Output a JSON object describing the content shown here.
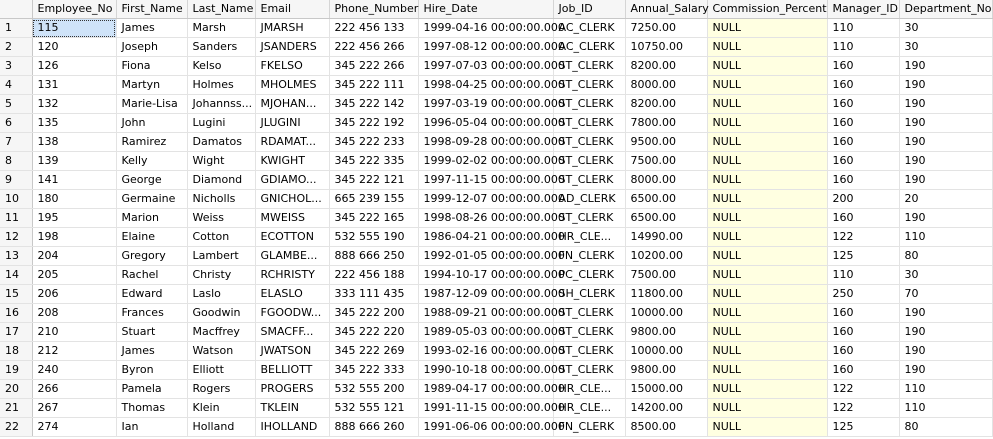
{
  "grid": {
    "columns": [
      "",
      "Employee_No",
      "First_Name",
      "Last_Name",
      "Email",
      "Phone_Number",
      "Hire_Date",
      "Job_ID",
      "Annual_Salary",
      "Commission_Percent",
      "Manager_ID",
      "Department_No"
    ],
    "rows": [
      [
        "1",
        "115",
        "James",
        "Marsh",
        "JMARSH",
        "222 456 133",
        "1999-04-16 00:00:00.000",
        "AC_CLERK",
        "7250.00",
        "NULL",
        "110",
        "30"
      ],
      [
        "2",
        "120",
        "Joseph",
        "Sanders",
        "JSANDERS",
        "222 456 266",
        "1997-08-12 00:00:00.000",
        "AC_CLERK",
        "10750.00",
        "NULL",
        "110",
        "30"
      ],
      [
        "3",
        "126",
        "Fiona",
        "Kelso",
        "FKELSO",
        "345 222 266",
        "1997-07-03 00:00:00.000",
        "ST_CLERK",
        "8200.00",
        "NULL",
        "160",
        "190"
      ],
      [
        "4",
        "131",
        "Martyn",
        "Holmes",
        "MHOLMES",
        "345 222 111",
        "1998-04-25 00:00:00.000",
        "ST_CLERK",
        "8000.00",
        "NULL",
        "160",
        "190"
      ],
      [
        "5",
        "132",
        "Marie-Lisa",
        "Johannss...",
        "MJOHAN...",
        "345 222 142",
        "1997-03-19 00:00:00.000",
        "ST_CLERK",
        "8200.00",
        "NULL",
        "160",
        "190"
      ],
      [
        "6",
        "135",
        "John",
        "Lugini",
        "JLUGINI",
        "345 222 192",
        "1996-05-04 00:00:00.000",
        "ST_CLERK",
        "7800.00",
        "NULL",
        "160",
        "190"
      ],
      [
        "7",
        "138",
        "Ramirez",
        "Damatos",
        "RDAMAT...",
        "345 222 233",
        "1998-09-28 00:00:00.000",
        "ST_CLERK",
        "9500.00",
        "NULL",
        "160",
        "190"
      ],
      [
        "8",
        "139",
        "Kelly",
        "Wight",
        "KWIGHT",
        "345 222 335",
        "1999-02-02 00:00:00.000",
        "ST_CLERK",
        "7500.00",
        "NULL",
        "160",
        "190"
      ],
      [
        "9",
        "141",
        "George",
        "Diamond",
        "GDIAMO...",
        "345 222 121",
        "1997-11-15 00:00:00.000",
        "ST_CLERK",
        "8000.00",
        "NULL",
        "160",
        "190"
      ],
      [
        "10",
        "180",
        "Germaine",
        "Nicholls",
        "GNICHOL...",
        "665 239 155",
        "1999-12-07 00:00:00.000",
        "AD_CLERK",
        "6500.00",
        "NULL",
        "200",
        "20"
      ],
      [
        "11",
        "195",
        "Marion",
        "Weiss",
        "MWEISS",
        "345 222 165",
        "1998-08-26 00:00:00.000",
        "ST_CLERK",
        "6500.00",
        "NULL",
        "160",
        "190"
      ],
      [
        "12",
        "198",
        "Elaine",
        "Cotton",
        "ECOTTON",
        "532 555 190",
        "1986-04-21 00:00:00.000",
        "HR_CLE...",
        "14990.00",
        "NULL",
        "122",
        "110"
      ],
      [
        "13",
        "204",
        "Gregory",
        "Lambert",
        "GLAMBE...",
        "888 666 250",
        "1992-01-05 00:00:00.000",
        "FN_CLERK",
        "10200.00",
        "NULL",
        "125",
        "80"
      ],
      [
        "14",
        "205",
        "Rachel",
        "Christy",
        "RCHRISTY",
        "222 456 188",
        "1994-10-17 00:00:00.000",
        "PC_CLERK",
        "7500.00",
        "NULL",
        "110",
        "30"
      ],
      [
        "15",
        "206",
        "Edward",
        "Laslo",
        "ELASLO",
        "333 111 435",
        "1987-12-09 00:00:00.000",
        "SH_CLERK",
        "11800.00",
        "NULL",
        "250",
        "70"
      ],
      [
        "16",
        "208",
        "Frances",
        "Goodwin",
        "FGOODW...",
        "345 222 200",
        "1988-09-21 00:00:00.000",
        "ST_CLERK",
        "10000.00",
        "NULL",
        "160",
        "190"
      ],
      [
        "17",
        "210",
        "Stuart",
        "Macffrey",
        "SMACFF...",
        "345 222 220",
        "1989-05-03 00:00:00.000",
        "ST_CLERK",
        "9800.00",
        "NULL",
        "160",
        "190"
      ],
      [
        "18",
        "212",
        "James",
        "Watson",
        "JWATSON",
        "345 222 269",
        "1993-02-16 00:00:00.000",
        "ST_CLERK",
        "10000.00",
        "NULL",
        "160",
        "190"
      ],
      [
        "19",
        "240",
        "Byron",
        "Elliott",
        "BELLIOTT",
        "345 222 333",
        "1990-10-18 00:00:00.000",
        "ST_CLERK",
        "9800.00",
        "NULL",
        "160",
        "190"
      ],
      [
        "20",
        "266",
        "Pamela",
        "Rogers",
        "PROGERS",
        "532 555 200",
        "1989-04-17 00:00:00.000",
        "HR_CLE...",
        "15000.00",
        "NULL",
        "122",
        "110"
      ],
      [
        "21",
        "267",
        "Thomas",
        "Klein",
        "TKLEIN",
        "532 555 121",
        "1991-11-15 00:00:00.000",
        "HR_CLE...",
        "14200.00",
        "NULL",
        "122",
        "110"
      ],
      [
        "22",
        "274",
        "Ian",
        "Holland",
        "IHOLLAND",
        "888 666 260",
        "1991-06-06 00:00:00.000",
        "FN_CLERK",
        "8500.00",
        "NULL",
        "125",
        "80"
      ]
    ],
    "colors": {
      "null_cell": "#ffffe1",
      "header_bg": "#f6f6f6",
      "selected_cell": "#cfe3f8"
    }
  }
}
